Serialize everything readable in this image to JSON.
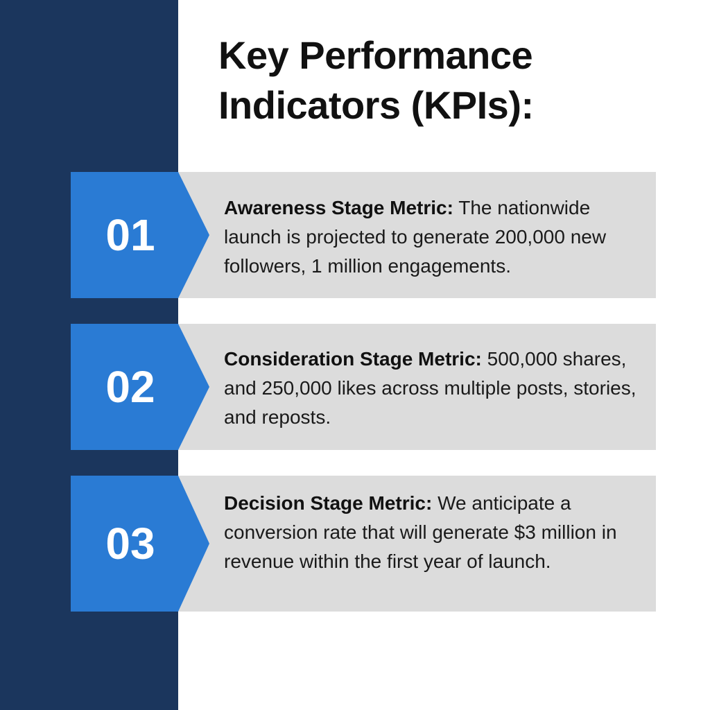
{
  "title_lines": [
    "Key Performance",
    "Indicators (KPIs):"
  ],
  "items": [
    {
      "number": "01",
      "label": "Awareness Stage Metric:",
      "text": "The nationwide launch is projected to generate 200,000 new followers, 1 million engagements."
    },
    {
      "number": "02",
      "label": "Consideration Stage Metric:",
      "text": "500,000 shares, and 250,000 likes across multiple posts, stories, and reposts."
    },
    {
      "number": "03",
      "label": "Decision Stage Metric:",
      "text": "We anticipate a conversion rate that will generate $3 million in revenue within the first year of launch."
    }
  ]
}
